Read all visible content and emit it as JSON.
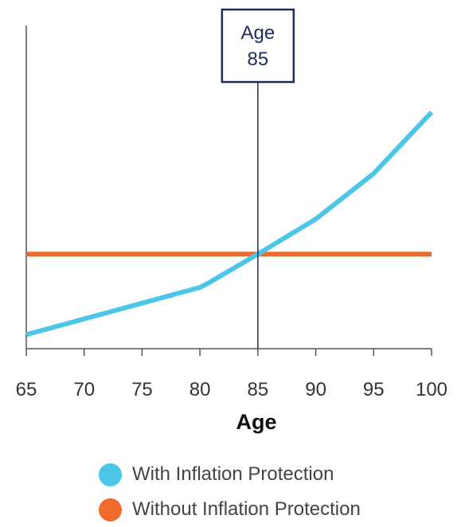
{
  "chart_data": {
    "type": "line",
    "xlabel": "Age",
    "ylabel": "",
    "title": "",
    "xlim": [
      65,
      100
    ],
    "ylim": [
      0,
      1
    ],
    "x_ticks": [
      "65",
      "70",
      "75",
      "80",
      "85",
      "90",
      "95",
      "100"
    ],
    "grid": false,
    "legend_position": "bottom",
    "series": [
      {
        "name": "With Inflation Protection",
        "color": "#4cc6e8",
        "x": [
          65,
          70,
          75,
          80,
          80.6,
          85,
          90,
          95,
          100
        ],
        "y": [
          0.08,
          0.17,
          0.26,
          0.35,
          0.37,
          0.54,
          0.74,
          1.0,
          1.35
        ]
      },
      {
        "name": "Without Inflation Protection",
        "color": "#f06a2c",
        "x": [
          65,
          100
        ],
        "y": [
          0.54,
          0.54
        ]
      }
    ],
    "annotation": {
      "x": 85,
      "label_line1": "Age",
      "label_line2": "85",
      "color": "#1e2a5e"
    }
  }
}
